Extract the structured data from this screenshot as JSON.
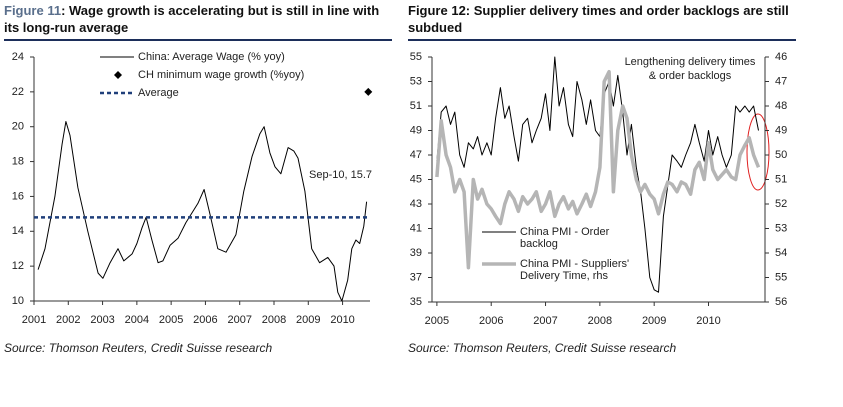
{
  "chart_data": [
    {
      "type": "line",
      "label": "Figure 11",
      "title": ": Wage growth is accelerating but is still in line with its long-run average",
      "source": "Source: Thomson Reuters, Credit Suisse research",
      "xlim": [
        2001,
        2010.8
      ],
      "xticks": [
        2001,
        2002,
        2003,
        2004,
        2005,
        2006,
        2007,
        2008,
        2009,
        2010
      ],
      "ylim": [
        10,
        24
      ],
      "yticks": [
        10,
        12,
        14,
        16,
        18,
        20,
        22,
        24
      ],
      "series": [
        {
          "name": "China: Average Wage (% yoy)",
          "color": "#000000",
          "x": [
            2001.12,
            2001.32,
            2001.61,
            2001.82,
            2001.93,
            2002.05,
            2002.28,
            2002.57,
            2002.87,
            2003.01,
            2003.22,
            2003.45,
            2003.62,
            2003.86,
            2004.0,
            2004.15,
            2004.27,
            2004.44,
            2004.62,
            2004.76,
            2004.97,
            2005.2,
            2005.43,
            2005.78,
            2005.96,
            2006.13,
            2006.36,
            2006.6,
            2006.89,
            2007.12,
            2007.36,
            2007.59,
            2007.71,
            2007.88,
            2008.03,
            2008.2,
            2008.41,
            2008.58,
            2008.7,
            2008.9,
            2009.1,
            2009.33,
            2009.57,
            2009.75,
            2009.86,
            2009.98,
            2010.15,
            2010.27,
            2010.39,
            2010.5,
            2010.62,
            2010.7
          ],
          "values": [
            11.8,
            13,
            16,
            19,
            20.3,
            19.5,
            16.5,
            14,
            11.6,
            11.3,
            12.2,
            13,
            12.3,
            12.7,
            13.3,
            14.2,
            14.8,
            13.5,
            12.2,
            12.3,
            13.2,
            13.6,
            14.5,
            15.6,
            16.4,
            15,
            13,
            12.8,
            13.8,
            16.3,
            18.3,
            19.6,
            20,
            18.5,
            17.7,
            17.3,
            18.8,
            18.6,
            18.2,
            16.3,
            13,
            12.2,
            12.5,
            12,
            10.5,
            10,
            11.2,
            13,
            13.5,
            13.3,
            14.3,
            15.7
          ]
        },
        {
          "name": "CH minimum wage growth (%yoy)",
          "color": "#000000",
          "marker": "diamond",
          "x": [
            2010.75
          ],
          "values": [
            22
          ]
        },
        {
          "name": "Average",
          "color": "#1f3f7a",
          "style": "dashed",
          "hline": true,
          "values": [
            14.8
          ]
        }
      ],
      "annotations": [
        "Sep-10, 15.7"
      ]
    },
    {
      "type": "line",
      "title": "Figure 12: Supplier delivery times and order backlogs are still subdued",
      "source": "Source: Thomson Reuters, Credit Suisse research",
      "xlim": [
        2004.91,
        2011.04
      ],
      "xticks": [
        2005,
        2006,
        2007,
        2008,
        2009,
        2010
      ],
      "ylim": [
        35,
        55
      ],
      "yticks": [
        35,
        37,
        39,
        41,
        43,
        45,
        47,
        49,
        51,
        53,
        55
      ],
      "y2lim": [
        56,
        46
      ],
      "y2ticks": [
        46,
        47,
        48,
        49,
        50,
        51,
        52,
        53,
        54,
        55,
        56
      ],
      "x": [
        2005.0,
        2005.08,
        2005.17,
        2005.25,
        2005.33,
        2005.42,
        2005.5,
        2005.58,
        2005.67,
        2005.75,
        2005.83,
        2005.92,
        2006.0,
        2006.08,
        2006.17,
        2006.25,
        2006.33,
        2006.42,
        2006.5,
        2006.58,
        2006.67,
        2006.75,
        2006.83,
        2006.92,
        2007.0,
        2007.08,
        2007.17,
        2007.25,
        2007.33,
        2007.42,
        2007.5,
        2007.58,
        2007.67,
        2007.75,
        2007.83,
        2007.92,
        2008.0,
        2008.08,
        2008.17,
        2008.25,
        2008.33,
        2008.42,
        2008.5,
        2008.58,
        2008.67,
        2008.75,
        2008.83,
        2008.92,
        2009.0,
        2009.08,
        2009.17,
        2009.25,
        2009.33,
        2009.42,
        2009.5,
        2009.58,
        2009.67,
        2009.75,
        2009.83,
        2009.92,
        2010.0,
        2010.08,
        2010.17,
        2010.25,
        2010.33,
        2010.42,
        2010.5,
        2010.58,
        2010.67,
        2010.75,
        2010.83,
        2010.92
      ],
      "series": [
        {
          "name": "China PMI - Order backlog",
          "color": "#000000",
          "values": [
            46.5,
            50.5,
            51,
            49.5,
            50.5,
            47,
            46,
            48,
            47.5,
            48.5,
            47,
            48,
            47,
            50,
            52.5,
            50,
            51,
            48.5,
            46.5,
            49.5,
            50,
            48,
            49,
            50,
            52,
            49,
            55,
            51,
            52.5,
            49.5,
            48.5,
            53,
            51.5,
            49.5,
            51.5,
            49,
            48.5,
            52,
            53,
            51,
            53.5,
            50.5,
            47,
            49.5,
            46,
            44,
            41,
            37,
            36,
            35.8,
            42,
            44.5,
            47,
            46.5,
            46,
            47,
            48,
            49.5,
            48,
            46.5,
            49,
            47,
            48.5,
            47,
            46,
            47,
            51,
            50.5,
            51,
            50.5,
            51,
            49
          ]
        },
        {
          "name": "China PMI - Suppliers' Delivery Time, rhs",
          "color": "#b5b5b5",
          "axis": "y2",
          "values": [
            50.9,
            48.6,
            50,
            50.5,
            51.5,
            51,
            51.5,
            54.6,
            51,
            51.8,
            51.4,
            52,
            52.2,
            52.5,
            52.8,
            52,
            51.5,
            51.8,
            52.3,
            51.7,
            52,
            51.8,
            51.5,
            52.3,
            52,
            51.5,
            52.5,
            52,
            51.7,
            52.2,
            51.9,
            52.4,
            52,
            51.6,
            52.1,
            51.5,
            50.5,
            47,
            46.6,
            51.5,
            49,
            48,
            48.5,
            50,
            51,
            51.5,
            51.2,
            51.6,
            51.8,
            52.4,
            51.6,
            51.1,
            51.2,
            51.5,
            51.1,
            51.2,
            51.6,
            50.6,
            50.3,
            51,
            49.5,
            50.6,
            51,
            50.8,
            50.6,
            50.9,
            51,
            50,
            49.6,
            49.3,
            50,
            50.5
          ]
        }
      ],
      "annotations": [
        "Lengthening delivery times",
        "& order backlogs"
      ]
    }
  ]
}
